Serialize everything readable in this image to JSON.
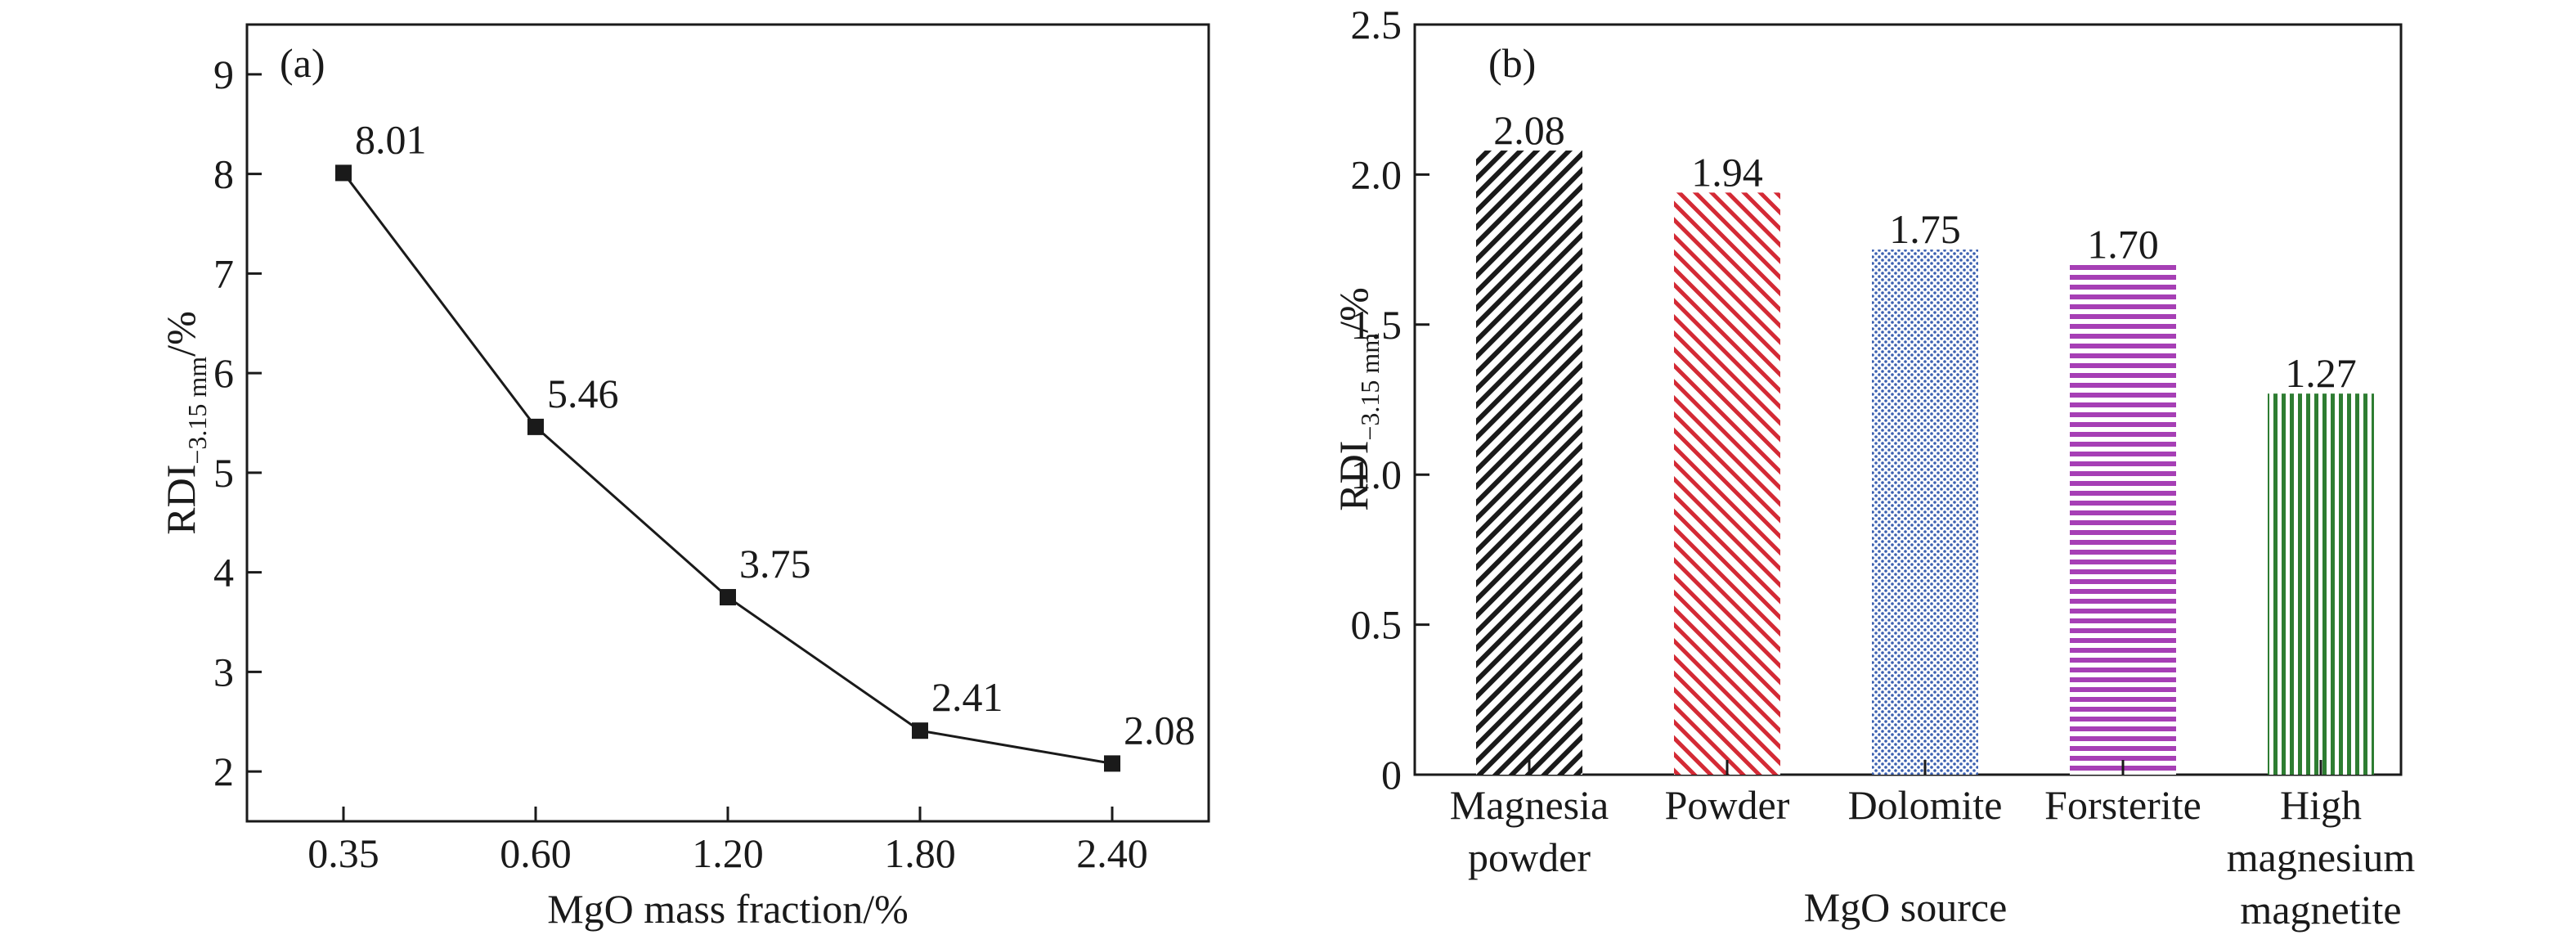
{
  "chart_data": [
    {
      "panel_label": "(a)",
      "type": "line",
      "categories": [
        "0.35",
        "0.60",
        "1.20",
        "1.80",
        "2.40"
      ],
      "values": [
        8.01,
        5.46,
        3.75,
        2.41,
        2.08
      ],
      "data_labels": [
        "8.01",
        "5.46",
        "3.75",
        "2.41",
        "2.08"
      ],
      "xlabel": "MgO mass fraction/%",
      "ylabel": {
        "main": "RDI",
        "sub": "−3.15 mm",
        "suffix": "/%"
      },
      "ylim": [
        1.5,
        9.5
      ],
      "yticks": [
        "2",
        "3",
        "4",
        "5",
        "6",
        "7",
        "8",
        "9"
      ],
      "grid": false,
      "marker": "square",
      "color": "#1a1a1a"
    },
    {
      "panel_label": "(b)",
      "type": "bar",
      "categories": [
        [
          "Magnesia",
          "powder"
        ],
        [
          "Powder"
        ],
        [
          "Dolomite"
        ],
        [
          "Forsterite"
        ],
        [
          "High",
          "magnesium",
          "magnetite"
        ]
      ],
      "values": [
        2.08,
        1.94,
        1.75,
        1.7,
        1.27
      ],
      "data_labels": [
        "2.08",
        "1.94",
        "1.75",
        "1.70",
        "1.27"
      ],
      "colors": [
        "#1a1a1a",
        "#d42a35",
        "#3a5fb0",
        "#a63fb5",
        "#2e7d32"
      ],
      "patterns": [
        "diagonal-dense",
        "diagonal",
        "dots",
        "horizontal",
        "vertical"
      ],
      "xlabel": "MgO source",
      "ylabel": {
        "main": "RDI",
        "sub": "−3.15 mm",
        "suffix": "/%"
      },
      "ylim": [
        0,
        2.5
      ],
      "yticks": [
        "0",
        "0.5",
        "1.0",
        "1.5",
        "2.0",
        "2.5"
      ],
      "grid": false
    }
  ]
}
